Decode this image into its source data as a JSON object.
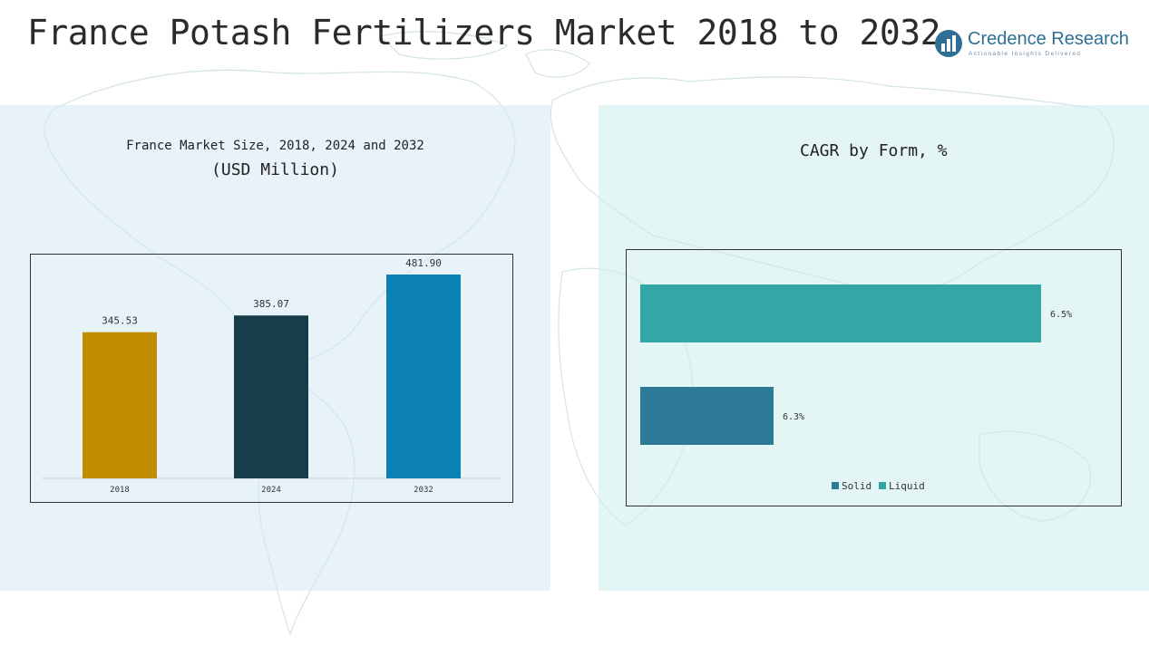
{
  "title": "France Potash Fertilizers Market 2018 to 2032",
  "logo": {
    "name": "Credence Research",
    "tagline": "Actionable Insights Delivered"
  },
  "colors": {
    "bar_2018": "#c08c00",
    "bar_2024": "#173d4b",
    "bar_2032": "#0a80b4",
    "solid": "#2d7a98",
    "liquid": "#33a6a6"
  },
  "chart_data": [
    {
      "type": "bar",
      "title": "France Market Size, 2018, 2024 and 2032",
      "subtitle": "(USD Million)",
      "categories": [
        "2018",
        "2024",
        "2032"
      ],
      "values": [
        345.53,
        385.07,
        481.9
      ],
      "value_labels": [
        "345.53",
        "385.07",
        "481.90"
      ],
      "ylim": [
        0,
        481.9
      ],
      "grid": false
    },
    {
      "type": "bar",
      "orientation": "horizontal",
      "title": "CAGR by Form, %",
      "categories": [
        "Liquid",
        "Solid"
      ],
      "values": [
        6.5,
        6.3
      ],
      "value_labels": [
        "6.5%",
        "6.3%"
      ],
      "legend": [
        "Solid",
        "Liquid"
      ],
      "legend_position": "bottom",
      "grid": false
    }
  ]
}
